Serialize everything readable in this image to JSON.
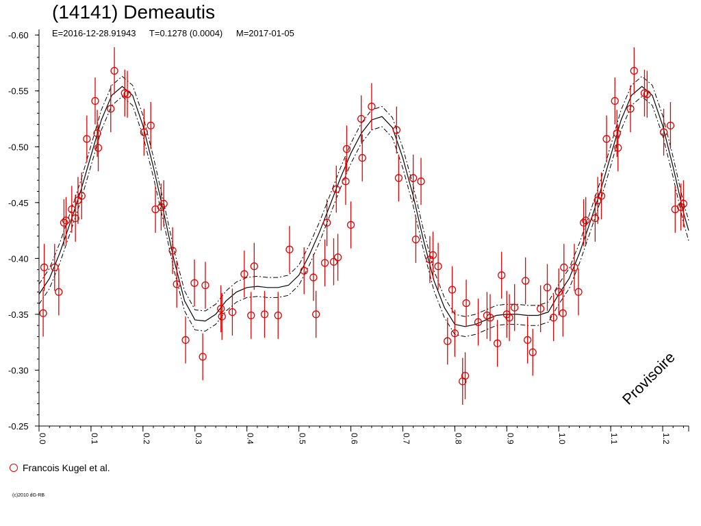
{
  "header": {
    "title": "(14141) Demeautis",
    "epoch": "E=2016-12-28.91943",
    "period": "T=0.1278 (0.0004)",
    "mid_date": "M=2017-01-05"
  },
  "legend": {
    "observer": "Francois Kugel et al."
  },
  "footer": {
    "copyright": "(c)2010 dG-RB"
  },
  "watermark": "Provisoire",
  "colors": {
    "points": "#e00000",
    "curve": "#000000",
    "axis": "#000000",
    "background": "#ffffff"
  },
  "chart_data": {
    "type": "scatter",
    "title": "(14141) Demeautis",
    "xlabel": "",
    "ylabel": "",
    "xlim": [
      0.0,
      1.25
    ],
    "ylim": [
      -0.25,
      -0.605
    ],
    "y_inverted": true,
    "grid": false,
    "x_ticks": [
      "0.0",
      "0.1",
      "0.2",
      "0.3",
      "0.4",
      "0.5",
      "0.6",
      "0.7",
      "0.8",
      "0.9",
      "1.0",
      "1.1",
      "1.2"
    ],
    "y_ticks": [
      "-0.60",
      "-0.55",
      "-0.50",
      "-0.45",
      "-0.40",
      "-0.35",
      "-0.30",
      "-0.25"
    ],
    "series": [
      {
        "name": "Francois Kugel et al.",
        "kind": "observations",
        "error_bar": 0.021,
        "points": [
          [
            0.008,
            -0.351
          ],
          [
            0.01,
            -0.392
          ],
          [
            0.03,
            -0.392
          ],
          [
            0.038,
            -0.37
          ],
          [
            0.048,
            -0.432
          ],
          [
            0.052,
            -0.434
          ],
          [
            0.063,
            -0.444
          ],
          [
            0.07,
            -0.436
          ],
          [
            0.075,
            -0.452
          ],
          [
            0.082,
            -0.456
          ],
          [
            0.092,
            -0.507
          ],
          [
            0.108,
            -0.541
          ],
          [
            0.112,
            -0.512
          ],
          [
            0.114,
            -0.499
          ],
          [
            0.138,
            -0.534
          ],
          [
            0.145,
            -0.568
          ],
          [
            0.165,
            -0.548
          ],
          [
            0.17,
            -0.547
          ],
          [
            0.202,
            -0.513
          ],
          [
            0.215,
            -0.519
          ],
          [
            0.224,
            -0.444
          ],
          [
            0.235,
            -0.446
          ],
          [
            0.24,
            -0.449
          ],
          [
            0.257,
            -0.407
          ],
          [
            0.265,
            -0.377
          ],
          [
            0.282,
            -0.327
          ],
          [
            0.299,
            -0.378
          ],
          [
            0.315,
            -0.312
          ],
          [
            0.32,
            -0.376
          ],
          [
            0.35,
            -0.355
          ],
          [
            0.352,
            -0.348
          ],
          [
            0.372,
            -0.352
          ],
          [
            0.395,
            -0.386
          ],
          [
            0.408,
            -0.349
          ],
          [
            0.414,
            -0.393
          ],
          [
            0.434,
            -0.35
          ],
          [
            0.46,
            -0.349
          ],
          [
            0.482,
            -0.408
          ],
          [
            0.51,
            -0.389
          ],
          [
            0.528,
            -0.383
          ],
          [
            0.533,
            -0.35
          ],
          [
            0.55,
            -0.396
          ],
          [
            0.554,
            -0.432
          ],
          [
            0.567,
            -0.397
          ],
          [
            0.572,
            -0.462
          ],
          [
            0.575,
            -0.401
          ],
          [
            0.59,
            -0.469
          ],
          [
            0.592,
            -0.498
          ],
          [
            0.6,
            -0.43
          ],
          [
            0.62,
            -0.525
          ],
          [
            0.622,
            -0.49
          ],
          [
            0.64,
            -0.536
          ],
          [
            0.688,
            -0.515
          ],
          [
            0.692,
            -0.472
          ],
          [
            0.72,
            -0.472
          ],
          [
            0.725,
            -0.417
          ],
          [
            0.735,
            -0.469
          ],
          [
            0.752,
            -0.399
          ],
          [
            0.758,
            -0.403
          ],
          [
            0.768,
            -0.393
          ],
          [
            0.786,
            -0.326
          ],
          [
            0.795,
            -0.372
          ],
          [
            0.8,
            -0.333
          ],
          [
            0.815,
            -0.29
          ],
          [
            0.82,
            -0.295
          ],
          [
            0.822,
            -0.36
          ],
          [
            0.845,
            -0.343
          ],
          [
            0.862,
            -0.349
          ],
          [
            0.868,
            -0.347
          ],
          [
            0.882,
            -0.324
          ],
          [
            0.89,
            -0.385
          ],
          [
            0.9,
            -0.35
          ],
          [
            0.905,
            -0.347
          ],
          [
            0.915,
            -0.356
          ],
          [
            0.936,
            -0.38
          ],
          [
            0.94,
            -0.327
          ],
          [
            0.95,
            -0.316
          ],
          [
            0.965,
            -0.355
          ],
          [
            0.978,
            -0.374
          ],
          [
            0.99,
            -0.347
          ],
          [
            1.0,
            -0.37
          ],
          [
            1.008,
            -0.351
          ],
          [
            1.01,
            -0.392
          ],
          [
            1.03,
            -0.392
          ],
          [
            1.038,
            -0.37
          ],
          [
            1.048,
            -0.432
          ],
          [
            1.052,
            -0.434
          ],
          [
            1.07,
            -0.436
          ],
          [
            1.075,
            -0.452
          ],
          [
            1.082,
            -0.456
          ],
          [
            1.092,
            -0.507
          ],
          [
            1.108,
            -0.541
          ],
          [
            1.112,
            -0.512
          ],
          [
            1.114,
            -0.499
          ],
          [
            1.138,
            -0.534
          ],
          [
            1.145,
            -0.568
          ],
          [
            1.165,
            -0.548
          ],
          [
            1.17,
            -0.547
          ],
          [
            1.202,
            -0.513
          ],
          [
            1.215,
            -0.519
          ],
          [
            1.224,
            -0.444
          ],
          [
            1.235,
            -0.446
          ],
          [
            1.24,
            -0.449
          ]
        ]
      },
      {
        "name": "",
        "kind": "fit",
        "points": [
          [
            0.0,
            -0.368
          ],
          [
            0.02,
            -0.382
          ],
          [
            0.04,
            -0.405
          ],
          [
            0.06,
            -0.432
          ],
          [
            0.08,
            -0.46
          ],
          [
            0.1,
            -0.492
          ],
          [
            0.12,
            -0.524
          ],
          [
            0.14,
            -0.546
          ],
          [
            0.16,
            -0.554
          ],
          [
            0.18,
            -0.546
          ],
          [
            0.2,
            -0.519
          ],
          [
            0.22,
            -0.482
          ],
          [
            0.24,
            -0.441
          ],
          [
            0.26,
            -0.398
          ],
          [
            0.28,
            -0.362
          ],
          [
            0.3,
            -0.345
          ],
          [
            0.32,
            -0.344
          ],
          [
            0.34,
            -0.35
          ],
          [
            0.36,
            -0.362
          ],
          [
            0.38,
            -0.37
          ],
          [
            0.4,
            -0.374
          ],
          [
            0.42,
            -0.375
          ],
          [
            0.44,
            -0.374
          ],
          [
            0.46,
            -0.374
          ],
          [
            0.48,
            -0.376
          ],
          [
            0.5,
            -0.385
          ],
          [
            0.52,
            -0.403
          ],
          [
            0.54,
            -0.424
          ],
          [
            0.56,
            -0.448
          ],
          [
            0.58,
            -0.472
          ],
          [
            0.6,
            -0.494
          ],
          [
            0.62,
            -0.512
          ],
          [
            0.64,
            -0.524
          ],
          [
            0.66,
            -0.527
          ],
          [
            0.68,
            -0.517
          ],
          [
            0.7,
            -0.49
          ],
          [
            0.72,
            -0.456
          ],
          [
            0.74,
            -0.416
          ],
          [
            0.76,
            -0.38
          ],
          [
            0.78,
            -0.356
          ],
          [
            0.8,
            -0.341
          ],
          [
            0.82,
            -0.339
          ],
          [
            0.84,
            -0.341
          ],
          [
            0.86,
            -0.345
          ],
          [
            0.88,
            -0.349
          ],
          [
            0.9,
            -0.35
          ],
          [
            0.92,
            -0.35
          ],
          [
            0.94,
            -0.349
          ],
          [
            0.96,
            -0.349
          ],
          [
            0.98,
            -0.352
          ],
          [
            1.0,
            -0.368
          ],
          [
            1.02,
            -0.382
          ],
          [
            1.04,
            -0.405
          ],
          [
            1.06,
            -0.432
          ],
          [
            1.08,
            -0.46
          ],
          [
            1.1,
            -0.492
          ],
          [
            1.12,
            -0.524
          ],
          [
            1.14,
            -0.546
          ],
          [
            1.16,
            -0.554
          ],
          [
            1.18,
            -0.546
          ],
          [
            1.2,
            -0.519
          ],
          [
            1.22,
            -0.482
          ],
          [
            1.24,
            -0.441
          ],
          [
            1.25,
            -0.425
          ]
        ],
        "band": 0.009
      }
    ]
  }
}
